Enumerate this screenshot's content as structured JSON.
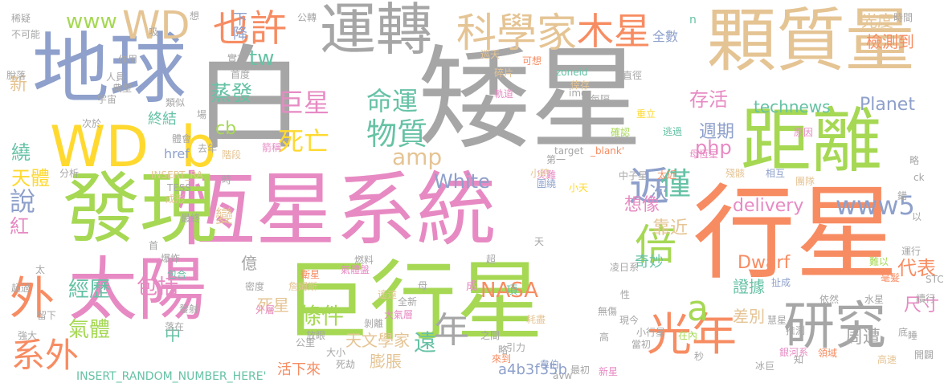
{
  "palette": {
    "gray": "#a6a6a6",
    "orange": "#f78c62",
    "blue": "#8ea0cb",
    "pink": "#e78ac3",
    "green": "#a6d854",
    "yellow": "#ffd92f",
    "tan": "#e5c494",
    "teal": "#66c2a5"
  },
  "words": [
    {
      "text": "矮星",
      "color": "gray"
    },
    {
      "text": "白",
      "color": "gray"
    },
    {
      "text": "行星",
      "color": "orange"
    },
    {
      "text": "巨行星",
      "color": "green"
    },
    {
      "text": "恆星系統",
      "color": "pink"
    },
    {
      "text": "發現",
      "color": "green"
    },
    {
      "text": "地球",
      "color": "blue"
    },
    {
      "text": "太陽",
      "color": "pink"
    },
    {
      "text": "顆質量",
      "color": "tan"
    },
    {
      "text": "距離",
      "color": "green"
    },
    {
      "text": "運轉",
      "color": "gray"
    },
    {
      "text": "WD",
      "color": "yellow"
    },
    {
      "text": "b",
      "color": "yellow"
    },
    {
      "text": "研究",
      "color": "gray"
    },
    {
      "text": "光年",
      "color": "orange"
    },
    {
      "text": "科學家",
      "color": "tan"
    },
    {
      "text": "木星",
      "color": "orange"
    },
    {
      "text": "也許",
      "color": "orange"
    },
    {
      "text": "WD",
      "color": "tan"
    },
    {
      "text": "倍",
      "color": "green"
    },
    {
      "text": "近",
      "color": "blue"
    },
    {
      "text": "a",
      "color": "green"
    },
    {
      "text": "外",
      "color": "orange"
    },
    {
      "text": "系外",
      "color": "orange"
    },
    {
      "text": "物質",
      "color": "teal"
    },
    {
      "text": "命運",
      "color": "teal"
    },
    {
      "text": "巨星",
      "color": "pink"
    },
    {
      "text": "死亡",
      "color": "yellow"
    },
    {
      "text": "僅",
      "color": "teal"
    },
    {
      "text": "說",
      "color": "blue"
    },
    {
      "text": "年",
      "color": "gray"
    },
    {
      "text": "www",
      "color": "green"
    },
    {
      "text": "tw",
      "color": "teal"
    },
    {
      "text": "下降",
      "color": "blue"
    },
    {
      "text": "蒸發",
      "color": "teal"
    },
    {
      "text": "cb",
      "color": "green"
    },
    {
      "text": "終結",
      "color": "teal"
    },
    {
      "text": "繞",
      "color": "teal"
    },
    {
      "text": "天體",
      "color": "yellow"
    },
    {
      "text": "紅",
      "color": "pink"
    },
    {
      "text": "經歷",
      "color": "teal"
    },
    {
      "text": "包括",
      "color": "pink"
    },
    {
      "text": "氣體",
      "color": "green"
    },
    {
      "text": "條件",
      "color": "green"
    },
    {
      "text": "NASA",
      "color": "orange"
    },
    {
      "text": "遠",
      "color": "teal"
    },
    {
      "text": "天文學家",
      "color": "tan"
    },
    {
      "text": "膨脹",
      "color": "tan"
    },
    {
      "text": "活下來",
      "color": "orange"
    },
    {
      "text": "a4b3f35b",
      "color": "blue"
    },
    {
      "text": "Dwarf",
      "color": "orange"
    },
    {
      "text": "delivery",
      "color": "pink"
    },
    {
      "text": "www5",
      "color": "blue"
    },
    {
      "text": "存活",
      "color": "pink"
    },
    {
      "text": "technews",
      "color": "teal"
    },
    {
      "text": "Planet",
      "color": "blue"
    },
    {
      "text": "週期",
      "color": "blue"
    },
    {
      "text": "php",
      "color": "pink"
    },
    {
      "text": "amp",
      "color": "tan"
    },
    {
      "text": "White",
      "color": "blue"
    },
    {
      "text": "次",
      "color": "blue"
    },
    {
      "text": "靠近",
      "color": "tan"
    },
    {
      "text": "想像",
      "color": "pink"
    },
    {
      "text": "證據",
      "color": "teal"
    },
    {
      "text": "差別",
      "color": "tan"
    },
    {
      "text": "尺寸",
      "color": "pink"
    },
    {
      "text": "周遭",
      "color": "gray"
    },
    {
      "text": "代表",
      "color": "orange"
    },
    {
      "text": "ck",
      "color": "gray"
    },
    {
      "text": "光度",
      "color": "tan"
    },
    {
      "text": "檢測到",
      "color": "orange"
    },
    {
      "text": "全數",
      "color": "blue"
    },
    {
      "text": "奇妙",
      "color": "teal"
    },
    {
      "text": "死星",
      "color": "tan"
    },
    {
      "text": "項",
      "color": "teal"
    },
    {
      "text": "成",
      "color": "pink"
    },
    {
      "text": "中",
      "color": "teal"
    },
    {
      "text": "億",
      "color": "gray"
    },
    {
      "text": "新",
      "color": "tan"
    },
    {
      "text": "變",
      "color": "tan"
    },
    {
      "text": "href",
      "color": "blue"
    },
    {
      "text": "INSERT_RANDOM_NUMBER_HERE'",
      "color": "teal"
    },
    {
      "text": "INSERT_RA",
      "color": "tan"
    },
    {
      "text": "TESS",
      "color": "gray"
    },
    {
      "text": "_blank'",
      "color": "orange"
    },
    {
      "text": "target",
      "color": "gray"
    },
    {
      "text": "img",
      "color": "gray"
    },
    {
      "text": "zoneid",
      "color": "teal"
    },
    {
      "text": "n",
      "color": "teal"
    },
    {
      "text": "可想",
      "color": "orange"
    },
    {
      "text": "巡天",
      "color": "tan"
    },
    {
      "text": "碎片",
      "color": "tan"
    },
    {
      "text": "軌道",
      "color": "pink"
    },
    {
      "text": "每隔",
      "color": "gray"
    },
    {
      "text": "倖存",
      "color": "tan"
    },
    {
      "text": "重立",
      "color": "yellow"
    },
    {
      "text": "確認",
      "color": "green"
    },
    {
      "text": "逃過",
      "color": "teal"
    },
    {
      "text": "原因",
      "color": "pink"
    },
    {
      "text": "母恆星",
      "color": "pink"
    },
    {
      "text": "中子星",
      "color": "gray"
    },
    {
      "text": "太近",
      "color": "orange"
    },
    {
      "text": "災難",
      "color": "pink"
    },
    {
      "text": "圍繞",
      "color": "blue"
    },
    {
      "text": "小天",
      "color": "yellow"
    },
    {
      "text": "第一",
      "color": "gray"
    },
    {
      "text": "小時",
      "color": "tan"
    },
    {
      "text": "殘骸",
      "color": "tan"
    },
    {
      "text": "相互",
      "color": "blue"
    },
    {
      "text": "團隊",
      "color": "tan"
    },
    {
      "text": "運行",
      "color": "gray"
    },
    {
      "text": "難以",
      "color": "green"
    },
    {
      "text": "毫髮",
      "color": "orange"
    },
    {
      "text": "水星",
      "color": "gray"
    },
    {
      "text": "依然",
      "color": "gray"
    },
    {
      "text": "扯成",
      "color": "blue"
    },
    {
      "text": "小行星",
      "color": "gray"
    },
    {
      "text": "無傷",
      "color": "gray"
    },
    {
      "text": "慧星",
      "color": "gray"
    },
    {
      "text": "推測",
      "color": "gray"
    },
    {
      "text": "銀河系",
      "color": "pink"
    },
    {
      "text": "高速",
      "color": "tan"
    },
    {
      "text": "知",
      "color": "gray"
    },
    {
      "text": "領域",
      "color": "orange"
    },
    {
      "text": "冰巨",
      "color": "gray"
    },
    {
      "text": "在內",
      "color": "green"
    },
    {
      "text": "新星",
      "color": "pink"
    },
    {
      "text": "最初",
      "color": "gray"
    },
    {
      "text": "avw",
      "color": "gray"
    },
    {
      "text": "略",
      "color": "gray"
    },
    {
      "text": "來到",
      "color": "orange"
    },
    {
      "text": "之間",
      "color": "gray"
    },
    {
      "text": "耗盡",
      "color": "tan"
    },
    {
      "text": "韋伯",
      "color": "blue"
    },
    {
      "text": "引力",
      "color": "gray"
    },
    {
      "text": "大氣層",
      "color": "pink"
    },
    {
      "text": "剝離",
      "color": "gray"
    },
    {
      "text": "全新",
      "color": "gray"
    },
    {
      "text": "遙遠",
      "color": "tan"
    },
    {
      "text": "氣體盤",
      "color": "pink"
    },
    {
      "text": "燃料",
      "color": "gray"
    },
    {
      "text": "衛星",
      "color": "orange"
    },
    {
      "text": "詹姆斯",
      "color": "tan"
    },
    {
      "text": "密度",
      "color": "gray"
    },
    {
      "text": "外層",
      "color": "pink"
    },
    {
      "text": "包合",
      "color": "teal"
    },
    {
      "text": "爆炸",
      "color": "gray"
    },
    {
      "text": "超過",
      "color": "gray"
    },
    {
      "text": "最終",
      "color": "gray"
    },
    {
      "text": "成形",
      "color": "tan"
    },
    {
      "text": "階段",
      "color": "tan"
    },
    {
      "text": "體會",
      "color": "gray"
    },
    {
      "text": "去年",
      "color": "gray"
    },
    {
      "text": "箭稱",
      "color": "pink"
    },
    {
      "text": "時",
      "color": "gray"
    },
    {
      "text": "略",
      "color": "gray"
    },
    {
      "text": "錯",
      "color": "gray"
    },
    {
      "text": "以",
      "color": "gray"
    },
    {
      "text": "STC",
      "color": "gray"
    },
    {
      "text": "續行",
      "color": "gray"
    },
    {
      "text": "開闢",
      "color": "gray"
    },
    {
      "text": "底",
      "color": "gray"
    },
    {
      "text": "睡",
      "color": "gray"
    },
    {
      "text": "秒",
      "color": "gray"
    },
    {
      "text": "當初",
      "color": "gray"
    },
    {
      "text": "現今",
      "color": "gray"
    },
    {
      "text": "高",
      "color": "gray"
    },
    {
      "text": "性",
      "color": "gray"
    },
    {
      "text": "凌日系",
      "color": "gray"
    },
    {
      "text": "死劫",
      "color": "gray"
    },
    {
      "text": "公里",
      "color": "gray"
    },
    {
      "text": "放眼",
      "color": "gray"
    },
    {
      "text": "大小",
      "color": "gray"
    },
    {
      "text": "發射",
      "color": "gray"
    },
    {
      "text": "落在",
      "color": "gray"
    },
    {
      "text": "強大",
      "color": "gray"
    },
    {
      "text": "留下",
      "color": "gray"
    },
    {
      "text": "太",
      "color": "gray"
    },
    {
      "text": "首",
      "color": "gray"
    },
    {
      "text": "分析",
      "color": "gray"
    },
    {
      "text": "典型",
      "color": "gray"
    },
    {
      "text": "次於",
      "color": "gray"
    },
    {
      "text": "宇宙",
      "color": "gray"
    },
    {
      "text": "類似",
      "color": "gray"
    },
    {
      "text": "首度",
      "color": "gray"
    },
    {
      "text": "實在",
      "color": "gray"
    },
    {
      "text": "作用",
      "color": "gray"
    },
    {
      "text": "人員",
      "color": "gray"
    },
    {
      "text": "吸",
      "color": "gray"
    },
    {
      "text": "想",
      "color": "gray"
    },
    {
      "text": "公轉",
      "color": "gray"
    },
    {
      "text": "時間",
      "color": "gray"
    },
    {
      "text": "脫落",
      "color": "gray"
    },
    {
      "text": "不可能",
      "color": "gray"
    },
    {
      "text": "稀疑",
      "color": "gray"
    },
    {
      "text": "場",
      "color": "gray"
    },
    {
      "text": "母",
      "color": "gray"
    },
    {
      "text": "超",
      "color": "gray"
    },
    {
      "text": "天",
      "color": "gray"
    },
    {
      "text": "直徑",
      "color": "gray"
    }
  ]
}
